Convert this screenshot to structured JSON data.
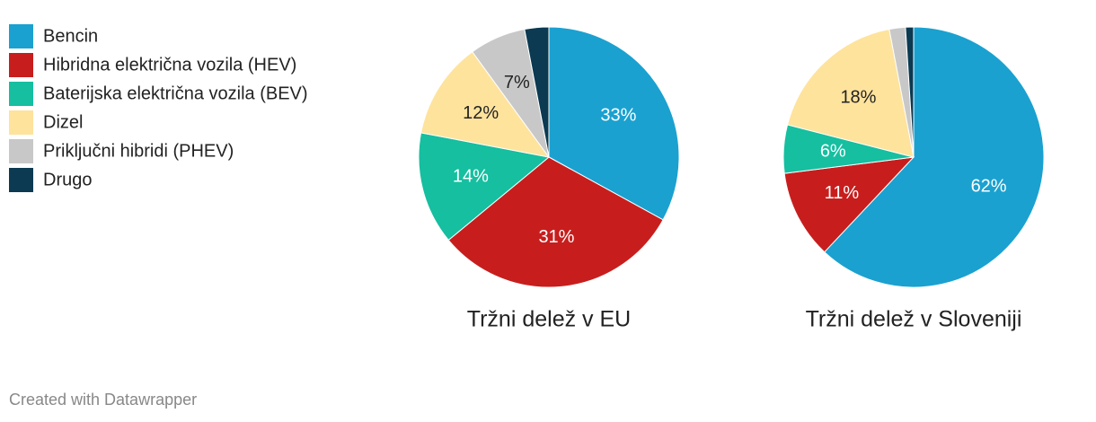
{
  "legend": {
    "items": [
      "Bencin",
      "Hibridna električna vozila (HEV)",
      "Baterijska električna vozila (BEV)",
      "Dizel",
      "Priključni hibridi (PHEV)",
      "Drugo"
    ],
    "colors": [
      "#1aa1d0",
      "#c71e1d",
      "#15bfa0",
      "#fee39d",
      "#c8c8c8",
      "#0b3a52"
    ]
  },
  "chart_data": [
    {
      "type": "pie",
      "title": "Tržni delež v EU",
      "values": [
        33,
        31,
        14,
        12,
        7,
        3
      ],
      "value_labels": [
        "33%",
        "31%",
        "14%",
        "12%",
        "7%",
        null
      ]
    },
    {
      "type": "pie",
      "title": "Tržni delež v Sloveniji",
      "values": [
        62,
        11,
        6,
        18,
        2,
        1
      ],
      "value_labels": [
        "62%",
        "11%",
        "6%",
        "18%",
        null,
        null
      ]
    }
  ],
  "footer": "Created with Datawrapper"
}
